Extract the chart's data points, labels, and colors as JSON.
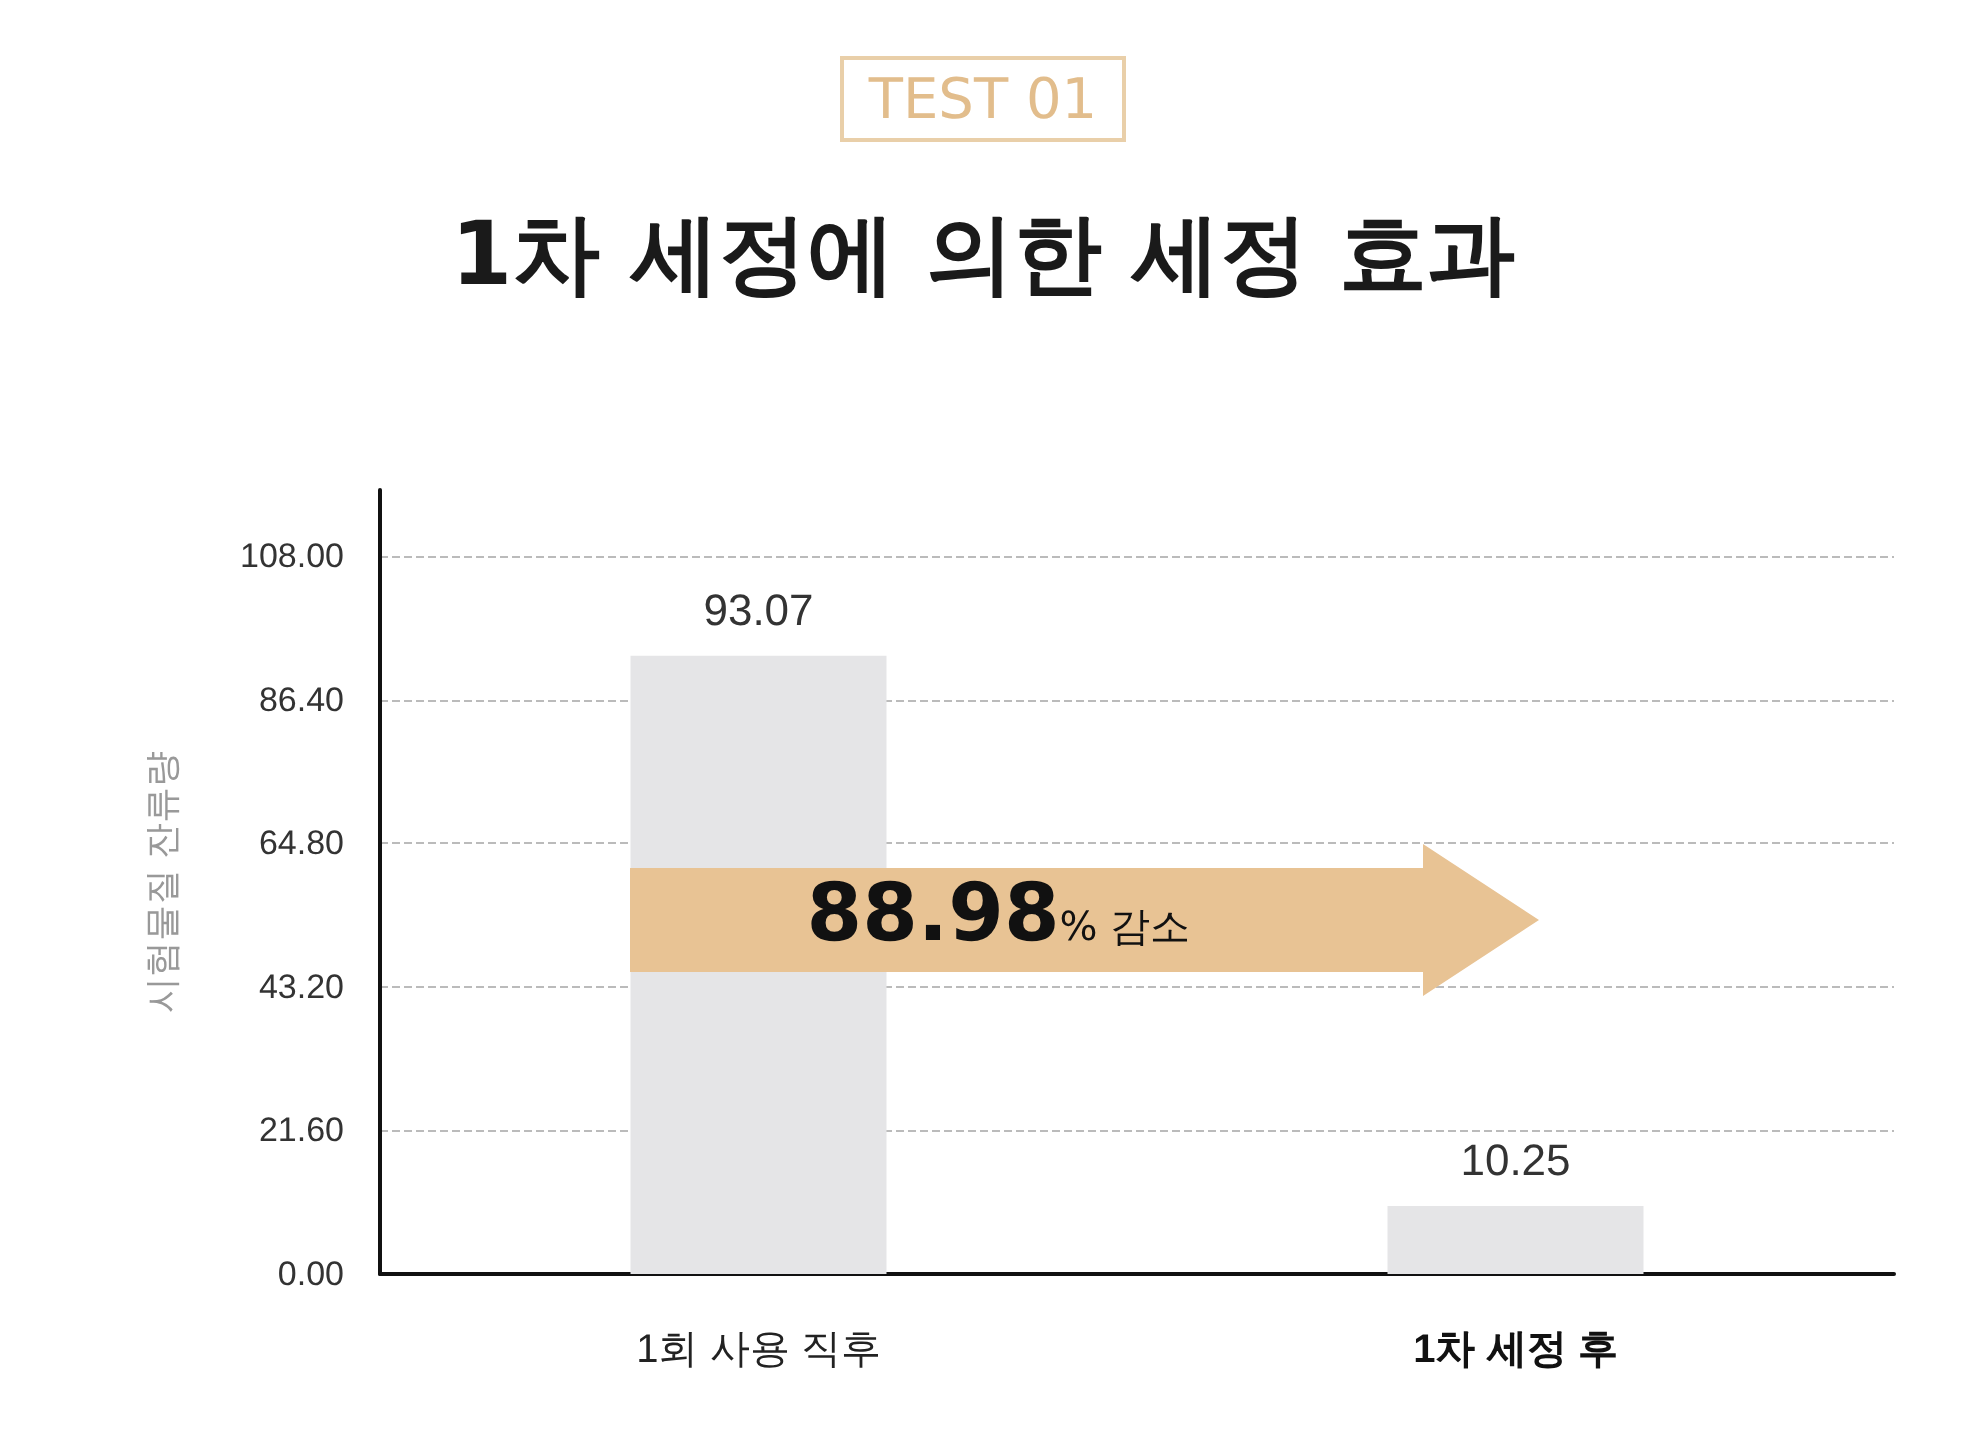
{
  "chart_data": {
    "type": "bar",
    "subtitle": "TEST 01",
    "title": "1차 세정에 의한 세정 효과",
    "ylabel": "시험물질 잔류량",
    "categories": [
      "1회 사용 직후",
      "1차 세정 후"
    ],
    "values": [
      93.07,
      10.25
    ],
    "color": "#e5e5e7",
    "data_labels": true,
    "ylim": [
      0,
      118
    ],
    "yticks": [
      {
        "value": 0,
        "label": "0.00"
      },
      {
        "value": 21.6,
        "label": "21.60"
      },
      {
        "value": 43.2,
        "label": "43.20"
      },
      {
        "value": 64.8,
        "label": "64.80"
      },
      {
        "value": 86.4,
        "label": "86.40"
      },
      {
        "value": 108,
        "label": "108.00"
      }
    ],
    "grid": "y",
    "line_style": "dashed",
    "annotations": [
      "88.98% 감소"
    ]
  }
}
